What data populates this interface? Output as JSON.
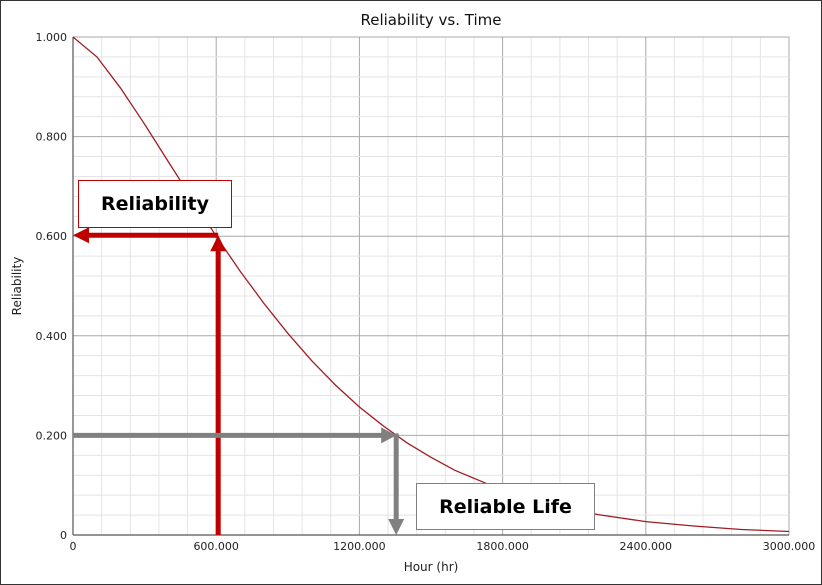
{
  "chart_data": {
    "type": "line",
    "title": "Reliability vs. Time",
    "xlabel": "Hour (hr)",
    "ylabel": "Reliability",
    "xlim": [
      0,
      3000
    ],
    "ylim": [
      0,
      1
    ],
    "grid": true,
    "x_ticks": [
      "0",
      "600.000",
      "1200.000",
      "1800.000",
      "2400.000",
      "3000.000"
    ],
    "y_ticks": [
      "0",
      "0.200",
      "0.400",
      "0.600",
      "0.800",
      "1.000"
    ],
    "series": [
      {
        "color": "#a01c24",
        "x": [
          0,
          100,
          200,
          300,
          400,
          500,
          600,
          700,
          800,
          900,
          1000,
          1100,
          1200,
          1300,
          1400,
          1500,
          1600,
          1800,
          2000,
          2200,
          2400,
          2600,
          2800,
          3000
        ],
        "y": [
          1.0,
          0.96,
          0.897,
          0.825,
          0.749,
          0.674,
          0.6,
          0.53,
          0.465,
          0.405,
          0.35,
          0.301,
          0.257,
          0.219,
          0.185,
          0.156,
          0.13,
          0.09,
          0.061,
          0.041,
          0.027,
          0.018,
          0.011,
          0.007
        ]
      }
    ],
    "annotations": [
      {
        "label": "Reliability",
        "color": "#c00000",
        "time": 600,
        "reliability": 0.6
      },
      {
        "label": "Reliable Life",
        "color": "#808080",
        "time": 1350,
        "reliability": 0.2
      }
    ]
  }
}
